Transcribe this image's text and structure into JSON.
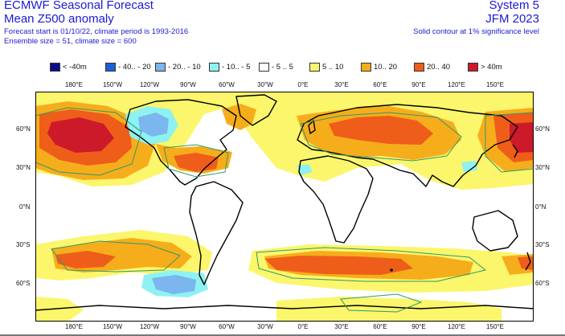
{
  "header": {
    "title": "ECMWF Seasonal Forecast",
    "subtitle": "Mean Z500 anomaly",
    "info1": "Forecast start is 01/10/22, climate period is 1993-2016",
    "info2": "Ensemble size = 51, climate size = 600",
    "system": "System 5",
    "period": "JFM 2023",
    "note": "Solid contour at 1% significance level"
  },
  "legend": [
    {
      "label": "< -40m",
      "color": "#0c0c8a"
    },
    {
      "label": "- 40.. - 20",
      "color": "#1c5fd6"
    },
    {
      "label": "- 20.. - 10",
      "color": "#7bb6ee"
    },
    {
      "label": "- 10.. - 5",
      "color": "#8ef2f2"
    },
    {
      "label": "- 5 .. 5",
      "color": "#ffffff"
    },
    {
      "label": "5 .. 10",
      "color": "#fbf66b"
    },
    {
      "label": "10.. 20",
      "color": "#f6ad1c"
    },
    {
      "label": "20.. 40",
      "color": "#ee5d1a"
    },
    {
      "label": "> 40m",
      "color": "#cc1a2a"
    }
  ],
  "lon_ticks": [
    "180°E",
    "150°W",
    "120°W",
    "90°W",
    "60°W",
    "30°W",
    "0°E",
    "30°E",
    "60°E",
    "90°E",
    "120°E",
    "150°E"
  ],
  "lat_ticks": [
    "60°N",
    "30°N",
    "0°N",
    "30°S",
    "60°S"
  ],
  "colors": {
    "text": "#1a1ad6",
    "contour": "#2e9a6a"
  }
}
